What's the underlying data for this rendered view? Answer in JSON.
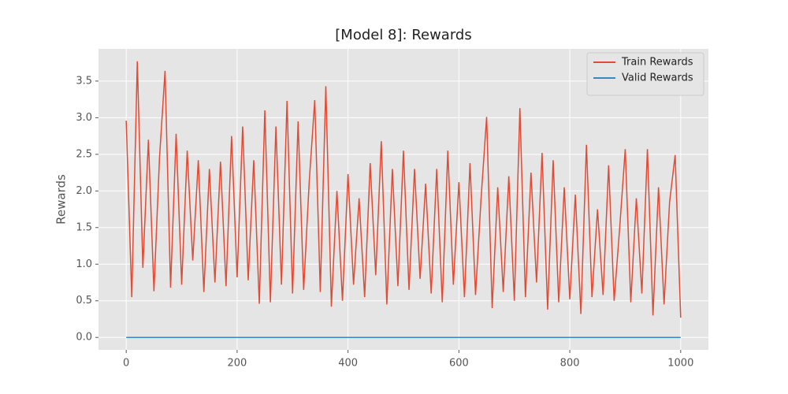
{
  "chart_data": {
    "type": "line",
    "title": "[Model 8]: Rewards",
    "y_label": "Rewards",
    "xlim": [
      -50,
      1050
    ],
    "ylim": [
      -0.17,
      3.94
    ],
    "xticks": [
      0,
      200,
      400,
      600,
      800,
      1000
    ],
    "yticks": [
      {
        "value": 0,
        "label": "0.0"
      },
      0.5,
      {
        "value": 1,
        "label": "1.0"
      },
      1.5,
      {
        "value": 2,
        "label": "2.0"
      },
      2.5,
      {
        "value": 3,
        "label": "3.0"
      },
      3.5
    ],
    "grid": true,
    "legend": "upper-right",
    "series": [
      {
        "name": "Train Rewards",
        "color": "#e24a33",
        "x": [
          0,
          10,
          20,
          30,
          40,
          50,
          60,
          70,
          80,
          90,
          100,
          110,
          120,
          130,
          140,
          150,
          160,
          170,
          180,
          190,
          200,
          210,
          220,
          230,
          240,
          250,
          260,
          270,
          280,
          290,
          300,
          310,
          320,
          330,
          340,
          350,
          360,
          370,
          380,
          390,
          400,
          410,
          420,
          430,
          440,
          450,
          460,
          470,
          480,
          490,
          500,
          510,
          520,
          530,
          540,
          550,
          560,
          570,
          580,
          590,
          600,
          610,
          620,
          630,
          640,
          650,
          660,
          670,
          680,
          690,
          700,
          710,
          720,
          730,
          740,
          750,
          760,
          770,
          780,
          790,
          800,
          810,
          820,
          830,
          840,
          850,
          860,
          870,
          880,
          890,
          900,
          910,
          920,
          930,
          940,
          950,
          960,
          970,
          980,
          990,
          1000
        ],
        "values": [
          2.96,
          0.55,
          3.77,
          0.95,
          2.7,
          0.63,
          2.45,
          3.64,
          0.68,
          2.78,
          0.72,
          2.55,
          1.05,
          2.42,
          0.62,
          2.3,
          0.75,
          2.4,
          0.7,
          2.75,
          0.82,
          2.88,
          0.78,
          2.42,
          0.46,
          3.1,
          0.48,
          2.88,
          0.72,
          3.23,
          0.6,
          2.95,
          0.65,
          2.12,
          3.24,
          0.62,
          3.43,
          0.42,
          2.0,
          0.5,
          2.23,
          0.72,
          1.9,
          0.55,
          2.38,
          0.85,
          2.68,
          0.45,
          2.3,
          0.7,
          2.55,
          0.65,
          2.3,
          0.8,
          2.1,
          0.6,
          2.3,
          0.48,
          2.55,
          0.72,
          2.12,
          0.55,
          2.38,
          0.58,
          1.9,
          3.01,
          0.4,
          2.05,
          0.62,
          2.2,
          0.5,
          3.13,
          0.55,
          2.25,
          0.75,
          2.52,
          0.38,
          2.42,
          0.48,
          2.05,
          0.52,
          1.95,
          0.32,
          2.63,
          0.55,
          1.75,
          0.58,
          2.35,
          0.5,
          1.5,
          2.57,
          0.48,
          1.9,
          0.6,
          2.57,
          0.3,
          2.05,
          0.45,
          1.85,
          2.49,
          0.27
        ]
      },
      {
        "name": "Valid Rewards",
        "color": "#348abd",
        "x": [
          0,
          1000
        ],
        "values": [
          0,
          0
        ]
      }
    ]
  }
}
